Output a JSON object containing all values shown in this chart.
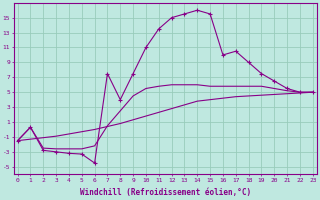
{
  "xlabel": "Windchill (Refroidissement éolien,°C)",
  "background_color": "#bfe8e0",
  "grid_color": "#99ccbb",
  "line_color": "#880088",
  "x_hours": [
    0,
    1,
    2,
    3,
    4,
    5,
    6,
    7,
    8,
    9,
    10,
    11,
    12,
    13,
    14,
    15,
    16,
    17,
    18,
    19,
    20,
    21,
    22,
    23
  ],
  "windchill": [
    -1.5,
    0.3,
    -2.8,
    -3.0,
    -3.2,
    -3.3,
    -4.5,
    7.5,
    4.0,
    7.5,
    11.0,
    13.5,
    15.0,
    15.5,
    16.0,
    15.5,
    10.0,
    10.5,
    9.0,
    7.5,
    6.5,
    5.5,
    5.0,
    5.0
  ],
  "temp": [
    -1.5,
    0.3,
    -2.5,
    -2.6,
    -2.6,
    -2.6,
    -2.2,
    0.5,
    2.5,
    4.5,
    5.5,
    5.8,
    6.0,
    6.0,
    6.0,
    5.8,
    5.8,
    5.8,
    5.8,
    5.8,
    5.5,
    5.2,
    5.0,
    5.0
  ],
  "linear_low": [
    -1.5,
    -1.3,
    -1.1,
    -0.9,
    -0.6,
    -0.3,
    0.0,
    0.4,
    0.8,
    1.3,
    1.8,
    2.3,
    2.8,
    3.3,
    3.8,
    4.0,
    4.2,
    4.4,
    4.5,
    4.6,
    4.7,
    4.8,
    4.9,
    5.0
  ],
  "ylim": [
    -6,
    17
  ],
  "yticks": [
    -5,
    -3,
    -1,
    1,
    3,
    5,
    7,
    9,
    11,
    13,
    15
  ]
}
